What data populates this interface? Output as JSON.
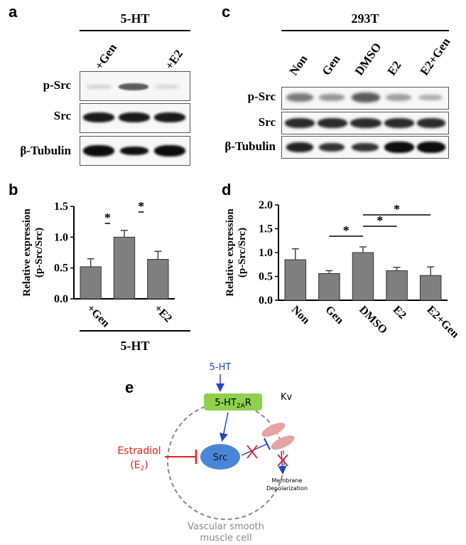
{
  "panels": {
    "a": {
      "label": "a",
      "header": "5-HT",
      "lanes": [
        "+Gen",
        "",
        "+E2"
      ],
      "rows": [
        "p-Src",
        "Src",
        "β-Tubulin"
      ]
    },
    "b": {
      "label": "b"
    },
    "c": {
      "label": "c",
      "header": "293T",
      "lanes": [
        "Non",
        "Gen",
        "DMSO",
        "E2",
        "E2+Gen"
      ],
      "rows": [
        "p-Src",
        "Src",
        "β-Tubulin"
      ]
    },
    "d": {
      "label": "d"
    },
    "e": {
      "label": "e",
      "ligand": "5-HT",
      "receptor_main": "5-HT",
      "receptor_sub": "2A",
      "receptor_tail": "R",
      "kinase": "Src",
      "channel": "Kv",
      "inhibitor_line1": "Estradiol",
      "inhibitor_line2_pre": "(E",
      "inhibitor_line2_sub": "2",
      "inhibitor_line2_post": ")",
      "outcome_line1": "Membrane",
      "outcome_line2": "Depolarization",
      "cell_line1": "Vascular smooth",
      "cell_line2": "muscle cell",
      "colors": {
        "receptor": "#8fd14f",
        "src": "#4a86d8",
        "kv": "#e6a3a3",
        "inhibit": "#e02020",
        "arrow": "#2244cc"
      }
    }
  },
  "chart_data": [
    {
      "type": "bar",
      "panel": "b",
      "categories": [
        "+Gen",
        "",
        "+E2"
      ],
      "values": [
        0.52,
        1.0,
        0.64
      ],
      "errors": [
        0.13,
        0.11,
        0.13
      ],
      "ylabel_line1": "Relative expression",
      "ylabel_line2": "(p-Src/Src)",
      "xgroup_label": "5-HT",
      "ylim": [
        0,
        1.5
      ],
      "yticks": [
        "0.0",
        "0.5",
        "1.0",
        "1.5"
      ],
      "significance": [
        {
          "from": 0,
          "to": 1,
          "label": "*"
        },
        {
          "from": 1,
          "to": 2,
          "label": "*"
        }
      ]
    },
    {
      "type": "bar",
      "panel": "d",
      "categories": [
        "Non",
        "Gen",
        "DMSO",
        "E2",
        "E2+Gen"
      ],
      "values": [
        0.85,
        0.56,
        1.0,
        0.62,
        0.52
      ],
      "errors": [
        0.23,
        0.06,
        0.12,
        0.07,
        0.18
      ],
      "ylabel_line1": "Relative expression",
      "ylabel_line2": "(p-Src/Src)",
      "ylim": [
        0,
        2.0
      ],
      "yticks": [
        "0.0",
        "0.5",
        "1.0",
        "1.5",
        "2.0"
      ],
      "significance": [
        {
          "from": 1,
          "to": 2,
          "label": "*"
        },
        {
          "from": 2,
          "to": 3,
          "label": "*"
        },
        {
          "from": 2,
          "to": 4,
          "label": "*"
        }
      ]
    }
  ]
}
